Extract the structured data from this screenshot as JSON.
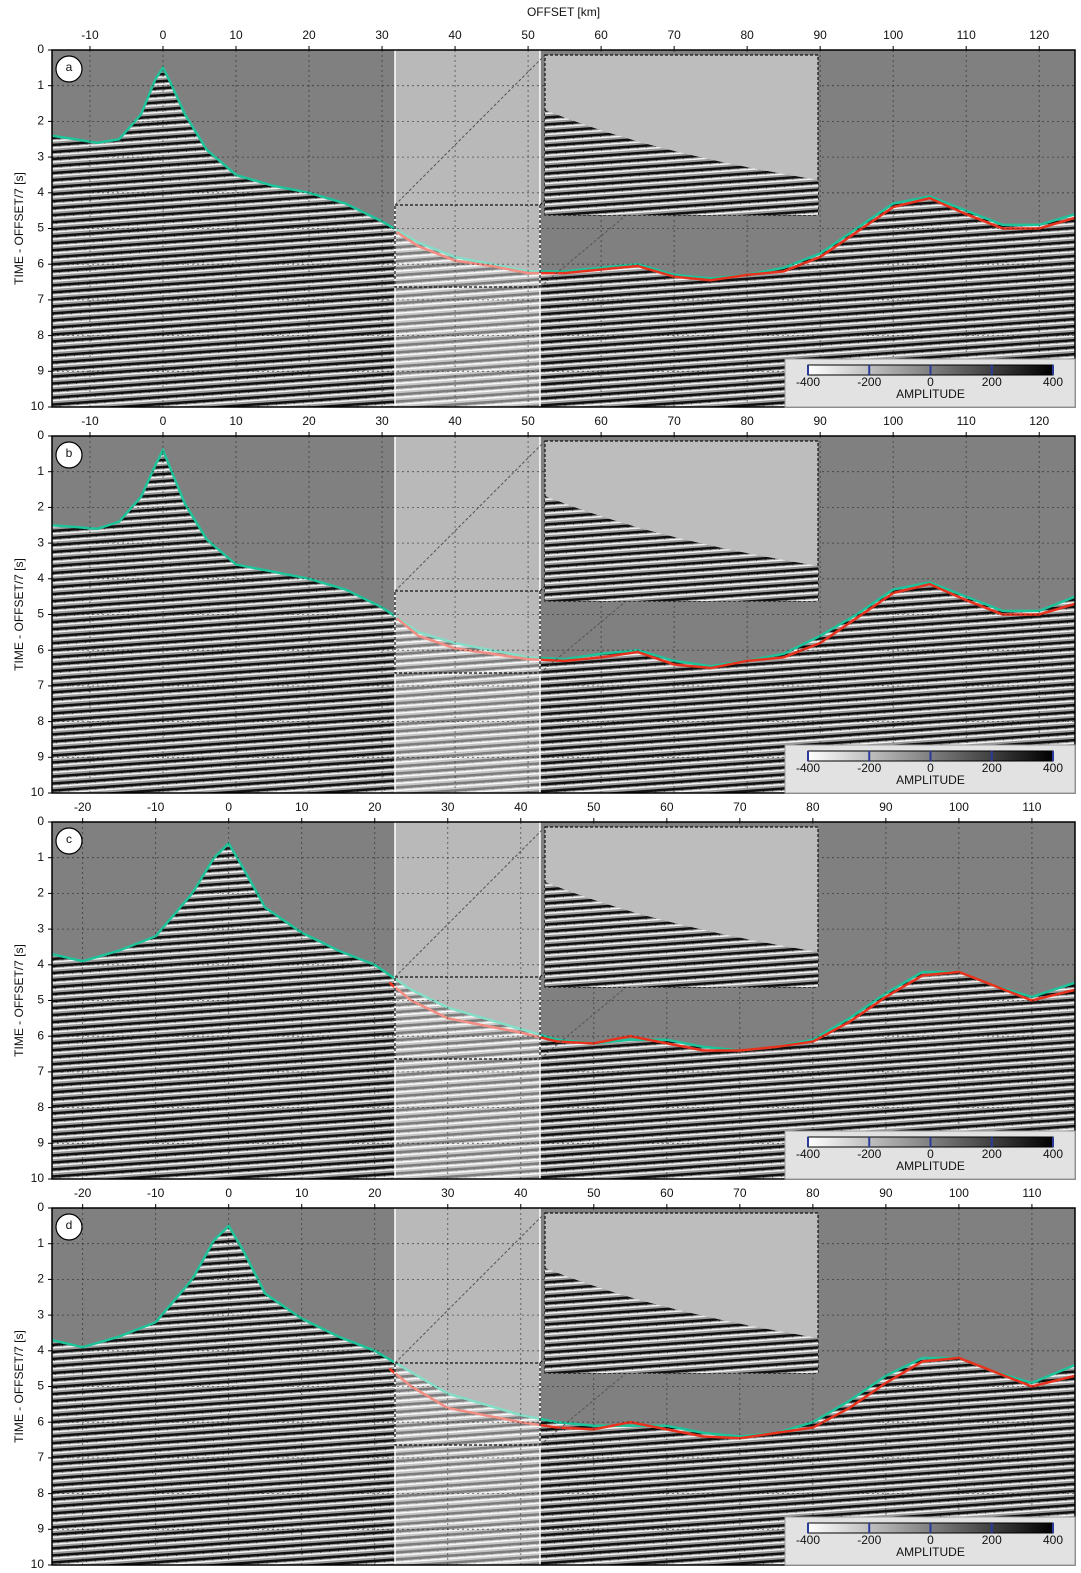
{
  "chart_data": [
    {
      "type": "seismic",
      "panel_label": "a",
      "xlabel": "OFFSET [km]",
      "ylabel": "TIME - OFFSET/7 [s]",
      "xlim": [
        -15.2,
        124.9
      ],
      "ylim": [
        0,
        10
      ],
      "xticks": [
        -10,
        0,
        10,
        20,
        30,
        40,
        50,
        60,
        70,
        80,
        90,
        100,
        110,
        120
      ],
      "yticks": [
        0,
        1,
        2,
        3,
        4,
        5,
        6,
        7,
        8,
        9,
        10
      ],
      "grid": true,
      "series": [
        {
          "color": "#1fc39a",
          "x": [
            -15.2,
            -12,
            -9,
            -6,
            -3,
            -1,
            0,
            1,
            3,
            6,
            10,
            15,
            20,
            25,
            30,
            35,
            40,
            45,
            50,
            55,
            60,
            65,
            70,
            75,
            80,
            85,
            90,
            95,
            100,
            105,
            110,
            115,
            120,
            124.9
          ],
          "values": [
            2.4,
            2.5,
            2.6,
            2.5,
            1.8,
            0.8,
            0.5,
            0.9,
            1.8,
            2.8,
            3.5,
            3.8,
            4.0,
            4.3,
            4.8,
            5.4,
            5.8,
            6.0,
            6.2,
            6.2,
            6.1,
            6.0,
            6.3,
            6.4,
            6.3,
            6.1,
            5.7,
            5.0,
            4.3,
            4.1,
            4.5,
            4.9,
            4.9,
            4.6
          ]
        },
        {
          "color": "#e8321e",
          "x": [
            32,
            35,
            40,
            45,
            50,
            55,
            60,
            65,
            70,
            75,
            80,
            85,
            90,
            95,
            100,
            105,
            110,
            115,
            120,
            124.9
          ],
          "values": [
            5.1,
            5.5,
            5.9,
            6.05,
            6.25,
            6.25,
            6.15,
            6.05,
            6.35,
            6.45,
            6.3,
            6.2,
            5.8,
            5.1,
            4.4,
            4.15,
            4.6,
            5.0,
            5.0,
            4.7
          ]
        }
      ],
      "colorbar": {
        "label": "AMPLITUDE",
        "lim": [
          -400,
          400
        ],
        "ticks": [
          -400,
          -200,
          0,
          200,
          400
        ]
      }
    },
    {
      "type": "seismic",
      "panel_label": "b",
      "ylabel": "TIME - OFFSET/7 [s]",
      "xlim": [
        -15.2,
        124.9
      ],
      "ylim": [
        0,
        10
      ],
      "xticks": [
        -10,
        0,
        10,
        20,
        30,
        40,
        50,
        60,
        70,
        80,
        90,
        100,
        110,
        120
      ],
      "yticks": [
        0,
        1,
        2,
        3,
        4,
        5,
        6,
        7,
        8,
        9,
        10
      ],
      "grid": true,
      "series": [
        {
          "color": "#1fc39a",
          "x": [
            -15.2,
            -12,
            -9,
            -6,
            -3,
            -1,
            0,
            1,
            3,
            6,
            10,
            15,
            20,
            25,
            30,
            35,
            40,
            45,
            50,
            55,
            60,
            65,
            70,
            75,
            80,
            85,
            90,
            95,
            100,
            105,
            110,
            115,
            120,
            124.9
          ],
          "values": [
            2.5,
            2.55,
            2.6,
            2.4,
            1.7,
            0.8,
            0.4,
            0.9,
            1.9,
            2.9,
            3.6,
            3.8,
            4.0,
            4.3,
            4.8,
            5.5,
            5.8,
            6.0,
            6.2,
            6.25,
            6.1,
            6.0,
            6.3,
            6.45,
            6.3,
            6.1,
            5.6,
            5.0,
            4.3,
            4.1,
            4.5,
            4.9,
            4.9,
            4.5
          ]
        },
        {
          "color": "#e8321e",
          "x": [
            32,
            35,
            40,
            45,
            50,
            55,
            60,
            65,
            70,
            75,
            80,
            85,
            90,
            95,
            100,
            105,
            110,
            115,
            120,
            124.9
          ],
          "values": [
            5.1,
            5.6,
            5.95,
            6.1,
            6.25,
            6.3,
            6.2,
            6.05,
            6.4,
            6.5,
            6.3,
            6.2,
            5.8,
            5.1,
            4.4,
            4.15,
            4.6,
            5.0,
            5.0,
            4.7
          ]
        }
      ],
      "colorbar": {
        "label": "AMPLITUDE",
        "lim": [
          -400,
          400
        ],
        "ticks": [
          -400,
          -200,
          0,
          200,
          400
        ]
      }
    },
    {
      "type": "seismic",
      "panel_label": "c",
      "ylabel": "TIME - OFFSET/7 [s]",
      "xlim": [
        -24.2,
        115.9
      ],
      "ylim": [
        0,
        10
      ],
      "xticks": [
        -20,
        -10,
        0,
        10,
        20,
        30,
        40,
        50,
        60,
        70,
        80,
        90,
        100,
        110
      ],
      "yticks": [
        0,
        1,
        2,
        3,
        4,
        5,
        6,
        7,
        8,
        9,
        10
      ],
      "grid": true,
      "series": [
        {
          "color": "#1fc39a",
          "x": [
            -24.2,
            -20,
            -15,
            -10,
            -5,
            -2,
            0,
            2,
            5,
            10,
            15,
            20,
            25,
            30,
            35,
            40,
            45,
            50,
            55,
            60,
            65,
            70,
            75,
            80,
            85,
            90,
            95,
            100,
            105,
            110,
            115.9
          ],
          "values": [
            3.7,
            3.9,
            3.6,
            3.2,
            2.0,
            1.0,
            0.6,
            1.3,
            2.4,
            3.1,
            3.6,
            4.0,
            4.7,
            5.2,
            5.5,
            5.8,
            6.1,
            6.2,
            6.1,
            6.1,
            6.3,
            6.4,
            6.3,
            6.1,
            5.5,
            4.8,
            4.2,
            4.2,
            4.6,
            4.9,
            4.5
          ]
        },
        {
          "color": "#e8321e",
          "x": [
            22,
            25,
            30,
            35,
            40,
            45,
            50,
            55,
            60,
            65,
            70,
            75,
            80,
            85,
            90,
            95,
            100,
            105,
            110,
            115.9
          ],
          "values": [
            4.5,
            5.0,
            5.5,
            5.7,
            5.9,
            6.15,
            6.2,
            6.0,
            6.2,
            6.4,
            6.4,
            6.3,
            6.15,
            5.6,
            4.9,
            4.3,
            4.2,
            4.6,
            5.0,
            4.7
          ]
        }
      ],
      "colorbar": {
        "label": "AMPLITUDE",
        "lim": [
          -400,
          400
        ],
        "ticks": [
          -400,
          -200,
          0,
          200,
          400
        ]
      }
    },
    {
      "type": "seismic",
      "panel_label": "d",
      "ylabel": "TIME - OFFSET/7 [s]",
      "xlim": [
        -24.2,
        115.9
      ],
      "ylim": [
        0,
        10
      ],
      "xticks": [
        -20,
        -10,
        0,
        10,
        20,
        30,
        40,
        50,
        60,
        70,
        80,
        90,
        100,
        110
      ],
      "yticks": [
        0,
        1,
        2,
        3,
        4,
        5,
        6,
        7,
        8,
        9,
        10
      ],
      "grid": true,
      "series": [
        {
          "color": "#1fc39a",
          "x": [
            -24.2,
            -20,
            -15,
            -10,
            -5,
            -2,
            0,
            2,
            5,
            10,
            15,
            20,
            25,
            30,
            35,
            40,
            45,
            50,
            55,
            60,
            65,
            70,
            75,
            80,
            85,
            90,
            95,
            100,
            105,
            110,
            115.9
          ],
          "values": [
            3.7,
            3.9,
            3.6,
            3.2,
            2.0,
            0.9,
            0.5,
            1.2,
            2.4,
            3.1,
            3.6,
            4.0,
            4.6,
            5.2,
            5.5,
            5.8,
            6.0,
            6.1,
            6.1,
            6.1,
            6.3,
            6.4,
            6.3,
            6.0,
            5.4,
            4.7,
            4.2,
            4.2,
            4.6,
            4.9,
            4.4
          ]
        },
        {
          "color": "#e8321e",
          "x": [
            22,
            25,
            30,
            35,
            40,
            45,
            50,
            55,
            60,
            65,
            70,
            75,
            80,
            85,
            90,
            95,
            100,
            105,
            110,
            115.9
          ],
          "values": [
            4.5,
            5.0,
            5.6,
            5.8,
            6.0,
            6.15,
            6.2,
            6.0,
            6.2,
            6.4,
            6.45,
            6.3,
            6.15,
            5.6,
            4.9,
            4.3,
            4.2,
            4.6,
            5.0,
            4.7
          ]
        }
      ],
      "colorbar": {
        "label": "AMPLITUDE",
        "lim": [
          -400,
          400
        ],
        "ticks": [
          -400,
          -200,
          0,
          200,
          400
        ]
      }
    }
  ]
}
